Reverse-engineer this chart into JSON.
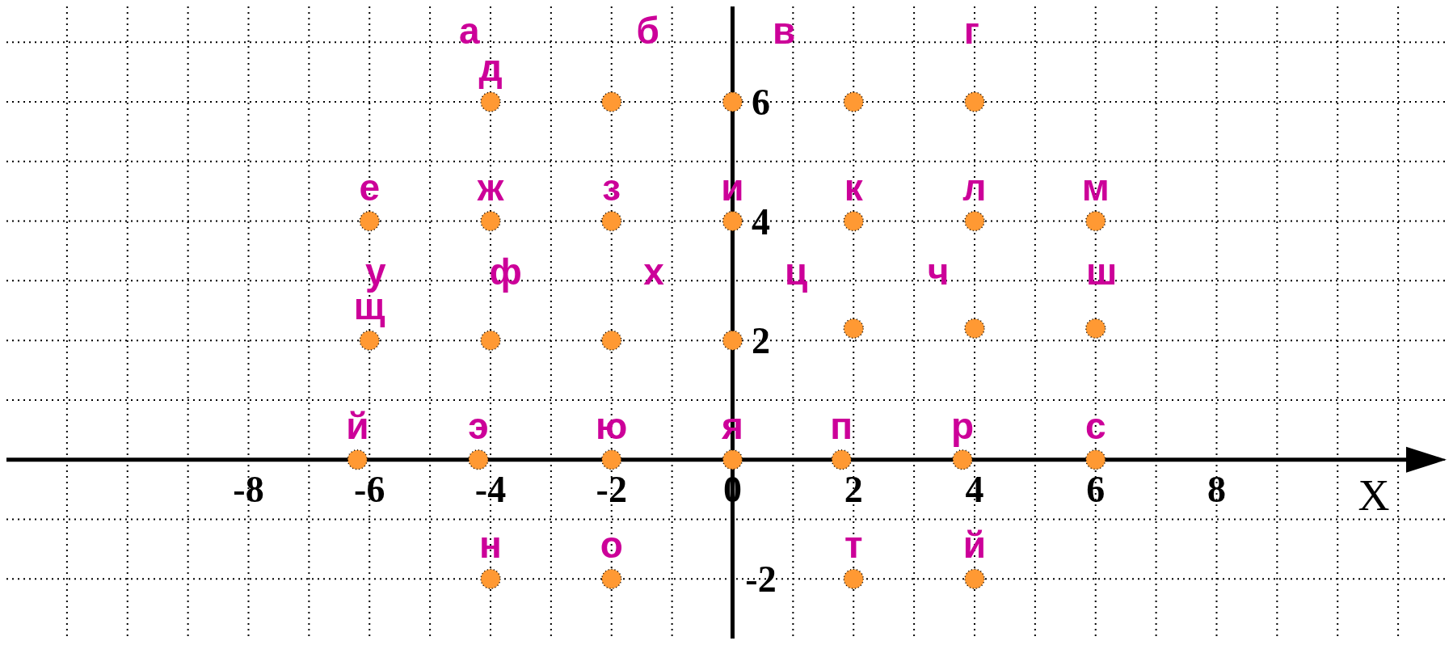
{
  "chart_data": {
    "type": "scatter",
    "xlabel": "X",
    "marker": "circle",
    "grid": true,
    "xlim": [
      -12,
      11.8
    ],
    "ylim": [
      -3,
      7.6
    ],
    "xticks": [
      {
        "value": -11,
        "label": null
      },
      {
        "value": -10,
        "label": null
      },
      {
        "value": -9,
        "label": null
      },
      -8,
      {
        "value": -7,
        "label": null
      },
      -6,
      {
        "value": -5,
        "label": null
      },
      -4,
      {
        "value": -3,
        "label": null
      },
      -2,
      {
        "value": -1,
        "label": null
      },
      0,
      {
        "value": 1,
        "label": null
      },
      2,
      {
        "value": 3,
        "label": null
      },
      4,
      {
        "value": 5,
        "label": null
      },
      6,
      {
        "value": 7,
        "label": null
      },
      8,
      {
        "value": 9,
        "label": null
      },
      {
        "value": 10,
        "label": null
      },
      {
        "value": 11,
        "label": null
      }
    ],
    "yticks": [
      -2,
      {
        "value": -1,
        "label": null
      },
      {
        "value": 0,
        "label": null
      },
      {
        "value": 1,
        "label": null
      },
      2,
      {
        "value": 3,
        "label": null
      },
      4,
      {
        "value": 5,
        "label": null
      },
      6,
      {
        "value": 7,
        "label": null
      }
    ],
    "series": [
      {
        "color": "#ff9933",
        "x": [
          -4,
          -2,
          0,
          2,
          4,
          -6,
          -4,
          -2,
          0,
          2,
          4,
          6,
          -6,
          -4,
          -2,
          0,
          2,
          4,
          6,
          -6.2,
          -4.2,
          -2,
          0,
          1.8,
          3.8,
          6,
          -4,
          -2,
          2,
          4
        ],
        "values": [
          6,
          6,
          6,
          6,
          6,
          4,
          4,
          4,
          4,
          4,
          4,
          4,
          2,
          2,
          2,
          2,
          2.2,
          2.2,
          2.2,
          0,
          0,
          0,
          0,
          0,
          0,
          0,
          -2,
          -2,
          -2,
          -2
        ]
      }
    ],
    "annotations": [
      "а",
      "б",
      "в",
      "г",
      "у",
      "ф",
      "х",
      "ц",
      "ч",
      "ш",
      {
        "text": "д",
        "x": -4,
        "y": 6
      },
      {
        "text": "е",
        "x": -6,
        "y": 4
      },
      {
        "text": "ж",
        "x": -4,
        "y": 4
      },
      {
        "text": "з",
        "x": -2,
        "y": 4
      },
      {
        "text": "и",
        "x": 0,
        "y": 4
      },
      {
        "text": "к",
        "x": 2,
        "y": 4
      },
      {
        "text": "л",
        "x": 4,
        "y": 4
      },
      {
        "text": "м",
        "x": 6,
        "y": 4
      },
      {
        "text": "щ",
        "x": -6,
        "y": 2
      },
      {
        "text": "й",
        "x": -6.2,
        "y": 0
      },
      {
        "text": "э",
        "x": -4.2,
        "y": 0
      },
      {
        "text": "ю",
        "x": -2,
        "y": 0
      },
      {
        "text": "я",
        "x": 0,
        "y": 0
      },
      {
        "text": "п",
        "x": 1.8,
        "y": 0
      },
      {
        "text": "р",
        "x": 3.8,
        "y": 0
      },
      {
        "text": "с",
        "x": 6,
        "y": 0
      },
      {
        "text": "н",
        "x": -4,
        "y": -2
      },
      {
        "text": "о",
        "x": -2,
        "y": -2
      },
      {
        "text": "т",
        "x": 2,
        "y": -2
      },
      {
        "text": "й",
        "x": 4,
        "y": -2
      }
    ]
  }
}
